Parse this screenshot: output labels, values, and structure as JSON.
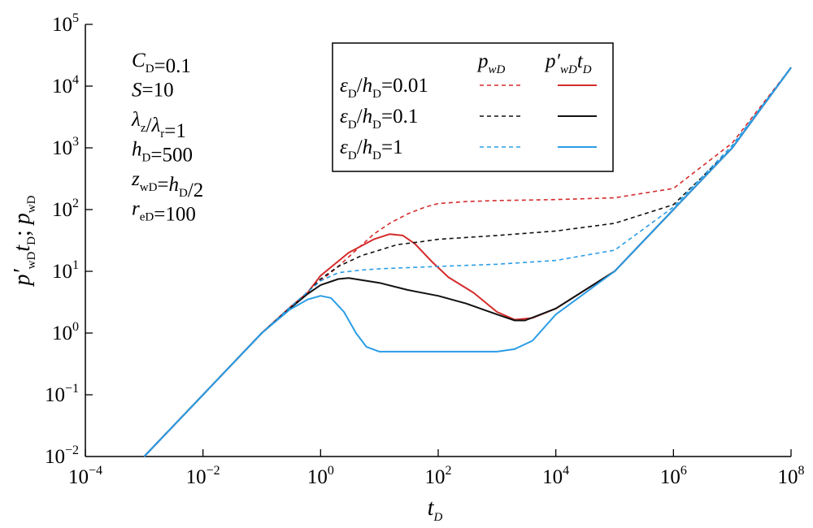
{
  "chart_data": {
    "type": "line",
    "scale": {
      "x": "log",
      "y": "log"
    },
    "xlim": [
      0.0001,
      100000000
    ],
    "ylim": [
      0.01,
      100000
    ],
    "xlabel": {
      "main": "t",
      "sub": "D"
    },
    "ylabel": {
      "text": "p′wDtD; pwD"
    },
    "x_ticks": [
      {
        "base": "10",
        "exp": "−4",
        "value": 0.0001
      },
      {
        "base": "10",
        "exp": "−2",
        "value": 0.01
      },
      {
        "base": "10",
        "exp": "0",
        "value": 1
      },
      {
        "base": "10",
        "exp": "2",
        "value": 100
      },
      {
        "base": "10",
        "exp": "4",
        "value": 10000
      },
      {
        "base": "10",
        "exp": "6",
        "value": 1000000
      },
      {
        "base": "10",
        "exp": "8",
        "value": 100000000
      }
    ],
    "y_ticks": [
      {
        "base": "10",
        "exp": "−2",
        "value": 0.01
      },
      {
        "base": "10",
        "exp": "−1",
        "value": 0.1
      },
      {
        "base": "10",
        "exp": "0",
        "value": 1
      },
      {
        "base": "10",
        "exp": "1",
        "value": 10
      },
      {
        "base": "10",
        "exp": "2",
        "value": 100
      },
      {
        "base": "10",
        "exp": "3",
        "value": 1000
      },
      {
        "base": "10",
        "exp": "4",
        "value": 10000
      },
      {
        "base": "10",
        "exp": "5",
        "value": 100000
      }
    ],
    "annotations": [
      "CD=0.1",
      "S=10",
      "λz/λr=1",
      "hD=500",
      "zwD=hD/2",
      "reD=100"
    ],
    "legend": {
      "position": "top-center",
      "header_pressure": "pwD",
      "header_derivative": "p′wDtD",
      "entries": [
        {
          "label": "εD/hD=0.01",
          "color": "#d42b2b"
        },
        {
          "label": "εD/hD=0.1",
          "color": "#111111"
        },
        {
          "label": "εD/hD=1",
          "color": "#2a9de6"
        }
      ]
    },
    "series": [
      {
        "name": "εD/hD=0.01 pwD",
        "color": "#d42b2b",
        "style": "dashed",
        "points": [
          [
            0.001,
            0.01
          ],
          [
            0.01,
            0.1
          ],
          [
            0.1,
            1
          ],
          [
            0.3,
            2.6
          ],
          [
            0.6,
            4.6
          ],
          [
            1,
            7
          ],
          [
            2,
            12
          ],
          [
            4,
            22
          ],
          [
            8,
            40
          ],
          [
            15,
            60
          ],
          [
            30,
            85
          ],
          [
            60,
            110
          ],
          [
            100,
            125
          ],
          [
            300,
            135
          ],
          [
            1000,
            140
          ],
          [
            10000,
            145
          ],
          [
            100000,
            155
          ],
          [
            1000000,
            220
          ],
          [
            10000000,
            1200
          ],
          [
            100000000,
            20000
          ]
        ]
      },
      {
        "name": "εD/hD=0.01 p′wDtD",
        "color": "#d42b2b",
        "style": "solid",
        "points": [
          [
            0.001,
            0.01
          ],
          [
            0.01,
            0.1
          ],
          [
            0.1,
            1
          ],
          [
            0.3,
            2.6
          ],
          [
            0.6,
            4.5
          ],
          [
            1,
            8.5
          ],
          [
            3,
            20
          ],
          [
            8,
            33
          ],
          [
            15,
            40
          ],
          [
            25,
            38
          ],
          [
            40,
            28
          ],
          [
            80,
            14
          ],
          [
            150,
            8
          ],
          [
            400,
            4.5
          ],
          [
            1000,
            2.2
          ],
          [
            2000,
            1.65
          ],
          [
            4000,
            1.75
          ],
          [
            10000,
            2.5
          ],
          [
            100000,
            10
          ],
          [
            1000000,
            100
          ],
          [
            10000000,
            1000
          ],
          [
            100000000,
            20000
          ]
        ]
      },
      {
        "name": "εD/hD=0.1 pwD",
        "color": "#111111",
        "style": "dashed",
        "points": [
          [
            0.001,
            0.01
          ],
          [
            0.01,
            0.1
          ],
          [
            0.1,
            1
          ],
          [
            0.3,
            2.6
          ],
          [
            0.6,
            4.6
          ],
          [
            1,
            7.5
          ],
          [
            2,
            12
          ],
          [
            5,
            18
          ],
          [
            10,
            22
          ],
          [
            20,
            27
          ],
          [
            50,
            30
          ],
          [
            100,
            33
          ],
          [
            1000,
            38
          ],
          [
            10000,
            45
          ],
          [
            100000,
            60
          ],
          [
            1000000,
            120
          ],
          [
            10000000,
            1000
          ],
          [
            100000000,
            20000
          ]
        ]
      },
      {
        "name": "εD/hD=0.1 p′wDtD",
        "color": "#111111",
        "style": "solid",
        "points": [
          [
            0.001,
            0.01
          ],
          [
            0.01,
            0.1
          ],
          [
            0.1,
            1
          ],
          [
            0.3,
            2.5
          ],
          [
            0.6,
            4.3
          ],
          [
            1,
            6
          ],
          [
            2,
            7.5
          ],
          [
            3,
            7.8
          ],
          [
            10,
            6.5
          ],
          [
            30,
            5
          ],
          [
            100,
            4
          ],
          [
            300,
            3
          ],
          [
            1000,
            2
          ],
          [
            2000,
            1.6
          ],
          [
            3000,
            1.6
          ],
          [
            10000,
            2.5
          ],
          [
            100000,
            10
          ],
          [
            1000000,
            100
          ],
          [
            10000000,
            1000
          ],
          [
            100000000,
            20000
          ]
        ]
      },
      {
        "name": "εD/hD=1 pwD",
        "color": "#2a9de6",
        "style": "dashed",
        "points": [
          [
            0.001,
            0.01
          ],
          [
            0.01,
            0.1
          ],
          [
            0.1,
            1
          ],
          [
            0.3,
            2.6
          ],
          [
            0.6,
            4.6
          ],
          [
            1,
            7
          ],
          [
            2,
            9.5
          ],
          [
            5,
            10.5
          ],
          [
            10,
            11
          ],
          [
            100,
            12
          ],
          [
            1000,
            13
          ],
          [
            10000,
            15
          ],
          [
            100000,
            22
          ],
          [
            1000000,
            110
          ],
          [
            10000000,
            1100
          ],
          [
            100000000,
            20000
          ]
        ]
      },
      {
        "name": "εD/hD=1 p′wDtD",
        "color": "#2a9de6",
        "style": "solid",
        "points": [
          [
            0.001,
            0.01
          ],
          [
            0.01,
            0.1
          ],
          [
            0.1,
            1
          ],
          [
            0.3,
            2.4
          ],
          [
            0.6,
            3.5
          ],
          [
            1,
            4
          ],
          [
            1.5,
            3.7
          ],
          [
            2.5,
            2.2
          ],
          [
            4,
            1
          ],
          [
            6,
            0.6
          ],
          [
            10,
            0.5
          ],
          [
            100,
            0.5
          ],
          [
            1000,
            0.5
          ],
          [
            2000,
            0.55
          ],
          [
            4000,
            0.75
          ],
          [
            10000,
            2
          ],
          [
            100000,
            10
          ],
          [
            1000000,
            100
          ],
          [
            10000000,
            1000
          ],
          [
            100000000,
            20000
          ]
        ]
      }
    ]
  }
}
